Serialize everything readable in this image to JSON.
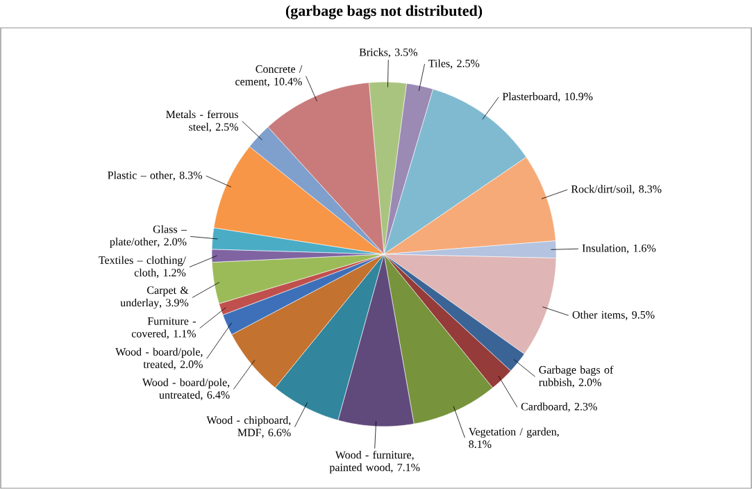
{
  "chart_data": {
    "type": "pie",
    "title": "(garbage bags not distributed)",
    "categories": [
      "Bricks",
      "Tiles",
      "Plasterboard",
      "Rock/dirt/soil",
      "Insulation",
      "Other items",
      "Garbage bags of rubbish",
      "Cardboard",
      "Vegetation / garden",
      "Wood - furniture, painted wood",
      "Wood - chipboard, MDF",
      "Wood - board/pole, untreated",
      "Wood - board/pole, treated",
      "Furniture - covered",
      "Carpet & underlay",
      "Textiles – clothing/ cloth",
      "Glass – plate/other",
      "Plastic – other",
      "Metals - ferrous steel",
      "Concrete / cement"
    ],
    "values": [
      3.5,
      2.5,
      10.9,
      8.3,
      1.6,
      9.5,
      2.0,
      2.3,
      8.1,
      7.1,
      6.6,
      6.4,
      2.0,
      1.1,
      3.9,
      1.2,
      2.0,
      8.3,
      2.5,
      10.4
    ],
    "value_labels": [
      ", 3.5%",
      ", 2.5%",
      ", 10.9%",
      ", 8.3%",
      ", 1.6%",
      ", 9.5%",
      ", 2.0%",
      ", 2.3%",
      ", 8.1%",
      ", 7.1%",
      ", 6.6%",
      ", 6.4%",
      ", 2.0%",
      ", 1.1%",
      ", 3.9%",
      ", 1.2%",
      ", 2.0%",
      ", 8.3%",
      ", 2.5%",
      ", 10.4%"
    ],
    "colors": [
      "#a9c47f",
      "#9b8ab4",
      "#7fbad0",
      "#f6aa78",
      "#b3c3e0",
      "#dfb5b5",
      "#3a6496",
      "#953b39",
      "#77933c",
      "#604a7b",
      "#31859c",
      "#c3722f",
      "#3d70b9",
      "#c0504d",
      "#9bbb59",
      "#8064a2",
      "#4bacc6",
      "#f79646",
      "#7f9fcc",
      "#c97b7b"
    ]
  }
}
